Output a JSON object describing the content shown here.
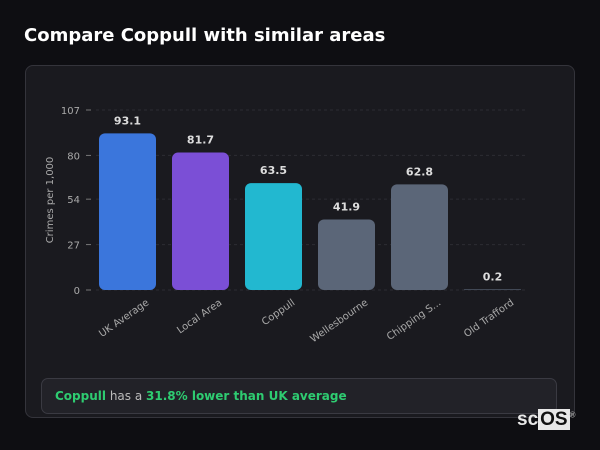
{
  "page_title": "Compare Coppull with similar areas",
  "chart_data": {
    "type": "bar",
    "ylabel": "Crimes per 1,000",
    "yticks": [
      0,
      27,
      54,
      80,
      107
    ],
    "ylim": [
      0,
      107
    ],
    "grid": true,
    "categories": [
      "UK Average",
      "Local Area",
      "Coppull",
      "Wellesbourne",
      "Chipping S...",
      "Old Trafford"
    ],
    "values": [
      93.1,
      81.7,
      63.5,
      41.9,
      62.8,
      0.2
    ],
    "value_labels": [
      "93.1",
      "81.7",
      "63.5",
      "41.9",
      "62.8",
      "0.2"
    ],
    "colors": [
      "#3b76dc",
      "#7b4fd6",
      "#22b8d0",
      "#5b6678",
      "#5b6678",
      "#5b6678"
    ]
  },
  "summary": {
    "area": "Coppull",
    "middle": " has a ",
    "highlight": "31.8% lower than UK average"
  },
  "logo": {
    "text1": "sc",
    "text2": "OS",
    "mark": "®"
  }
}
